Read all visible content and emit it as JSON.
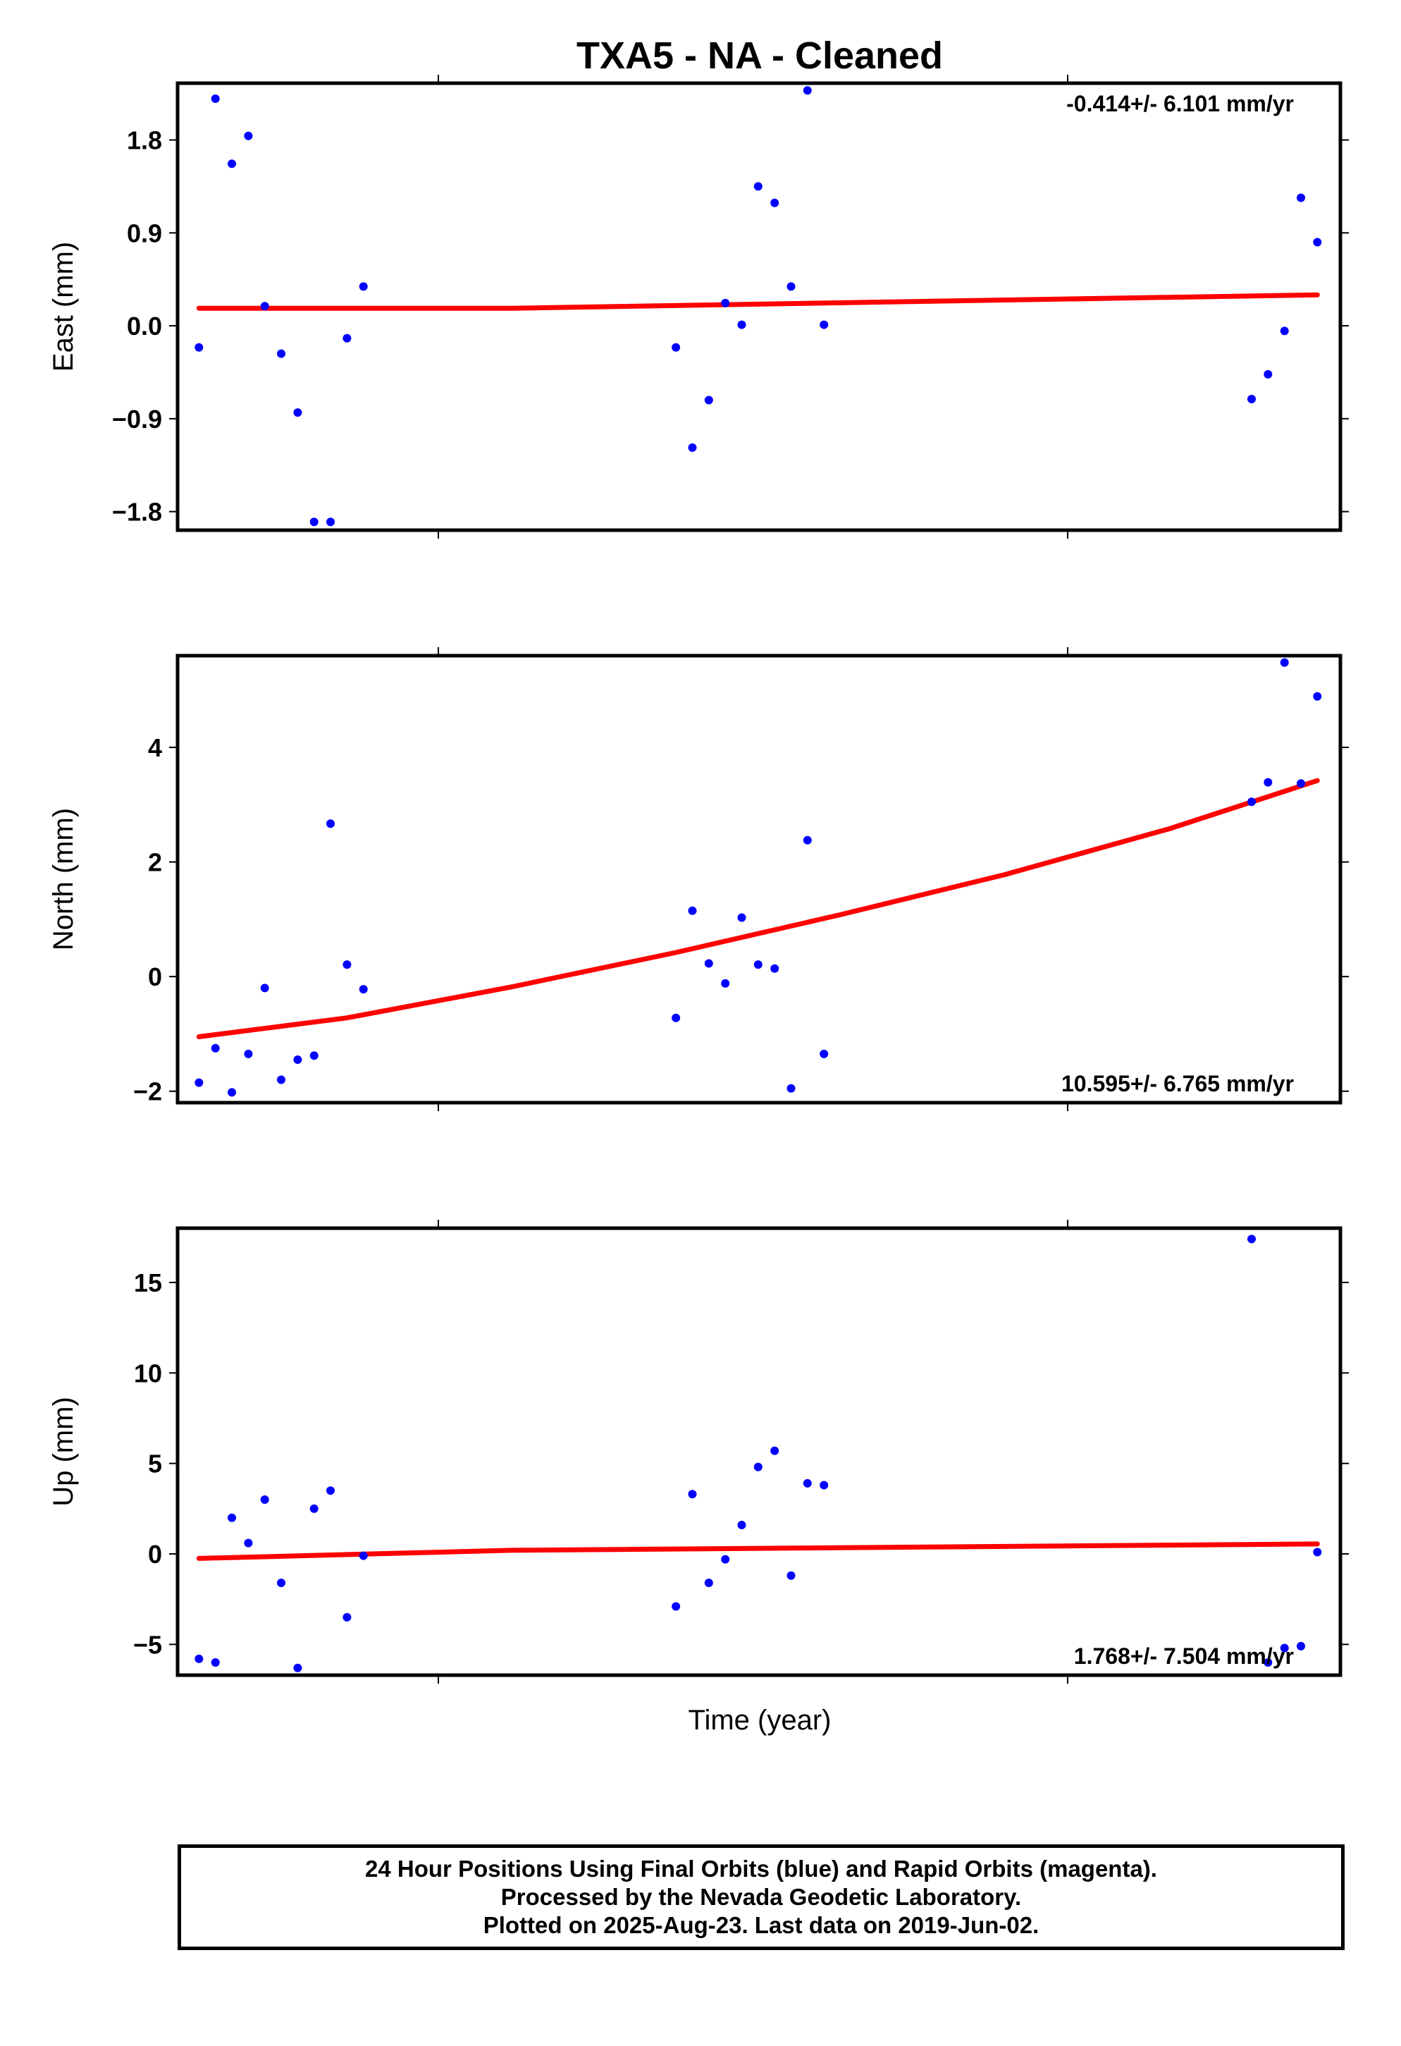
{
  "title": "TXA5  - NA - Cleaned",
  "xlabel": "Time (year)",
  "colors": {
    "points": "#0000ff",
    "fit": "#ff0000",
    "frame": "#000000"
  },
  "footer": {
    "line1": "24 Hour Positions Using Final Orbits (blue) and Rapid Orbits (magenta).",
    "line2": "Processed by the Nevada Geodetic Laboratory.",
    "line3": "Plotted on 2025-Aug-23. Last data on 2019-Jun-02."
  },
  "chart_data": [
    {
      "type": "scatter",
      "name": "east",
      "ylabel": "East (mm)",
      "ylim": [
        -1.98,
        2.35
      ],
      "yticks": [
        1.8,
        0.9,
        0.0,
        -0.9,
        -1.8
      ],
      "ytick_labels": [
        "1.8",
        "0.9",
        "0.0",
        "−0.9",
        "−1.8"
      ],
      "rate_label": "-0.414+/- 6.101 mm/yr",
      "rate_position": "top-right",
      "x": [
        1,
        2,
        3,
        4,
        5,
        6,
        7,
        8,
        9,
        10,
        11,
        30,
        31,
        32,
        33,
        34,
        35,
        36,
        37,
        38,
        39,
        65,
        66,
        67,
        68,
        69
      ],
      "y": [
        -0.21,
        2.2,
        1.57,
        1.84,
        0.19,
        -0.27,
        -0.84,
        -1.9,
        -1.9,
        -0.12,
        0.38,
        -0.21,
        -1.18,
        -0.72,
        0.22,
        0.01,
        1.35,
        1.19,
        0.38,
        2.28,
        0.01,
        -0.71,
        -0.47,
        -0.05,
        1.24,
        0.81
      ],
      "fit": [
        [
          1,
          0.17
        ],
        [
          20,
          0.17
        ],
        [
          69,
          0.3
        ]
      ]
    },
    {
      "type": "scatter",
      "name": "north",
      "ylabel": "North (mm)",
      "ylim": [
        -2.2,
        5.6
      ],
      "yticks": [
        4,
        2,
        0,
        -2
      ],
      "ytick_labels": [
        "4",
        "2",
        "0",
        "−2"
      ],
      "rate_label": "10.595+/- 6.765 mm/yr",
      "rate_position": "bottom-right",
      "x": [
        1,
        2,
        3,
        4,
        5,
        6,
        7,
        8,
        9,
        10,
        11,
        30,
        31,
        32,
        33,
        34,
        35,
        36,
        37,
        38,
        39,
        65,
        66,
        67,
        68,
        69
      ],
      "y": [
        -1.85,
        -1.25,
        -2.02,
        -1.35,
        -0.2,
        -1.8,
        -1.45,
        -1.38,
        2.67,
        0.21,
        -0.22,
        -0.72,
        1.15,
        0.23,
        -0.12,
        1.03,
        0.21,
        0.14,
        -1.95,
        2.38,
        -1.35,
        3.05,
        3.39,
        5.48,
        3.37,
        4.89
      ],
      "fit": [
        [
          1,
          -1.05
        ],
        [
          10,
          -0.72
        ],
        [
          20,
          -0.18
        ],
        [
          30,
          0.42
        ],
        [
          40,
          1.08
        ],
        [
          50,
          1.78
        ],
        [
          60,
          2.58
        ],
        [
          69,
          3.42
        ]
      ]
    },
    {
      "type": "scatter",
      "name": "up",
      "ylabel": "Up (mm)",
      "ylim": [
        -6.7,
        18.0
      ],
      "yticks": [
        15,
        10,
        5,
        0,
        -5
      ],
      "ytick_labels": [
        "15",
        "10",
        "5",
        "0",
        "−5"
      ],
      "rate_label": "1.768+/- 7.504 mm/yr",
      "rate_position": "bottom-right",
      "x": [
        1,
        2,
        3,
        4,
        5,
        6,
        7,
        8,
        9,
        10,
        11,
        30,
        31,
        32,
        33,
        34,
        35,
        36,
        37,
        38,
        39,
        65,
        66,
        67,
        68,
        69
      ],
      "y": [
        -5.8,
        -6.0,
        2.0,
        0.6,
        3.0,
        -1.6,
        -6.3,
        2.5,
        3.5,
        -3.5,
        -0.1,
        -2.9,
        3.3,
        -1.6,
        -0.3,
        1.6,
        4.8,
        5.7,
        -1.2,
        3.9,
        3.8,
        17.4,
        -6.0,
        -5.2,
        -5.1,
        0.1
      ],
      "fit": [
        [
          1,
          -0.25
        ],
        [
          20,
          0.2
        ],
        [
          69,
          0.55
        ]
      ]
    }
  ]
}
